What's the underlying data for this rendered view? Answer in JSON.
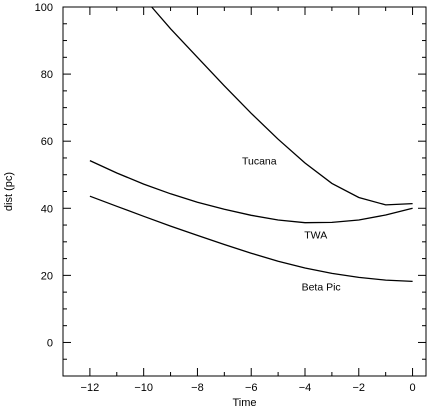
{
  "chart_data": {
    "type": "line",
    "xlabel": "Time",
    "ylabel": "dist (pc)",
    "xlim": [
      -13,
      0.5
    ],
    "ylim": [
      -10,
      100
    ],
    "xticks": [
      -12,
      -10,
      -8,
      -6,
      -4,
      -2,
      0
    ],
    "yticks": [
      0,
      20,
      40,
      60,
      80,
      100
    ],
    "xtick_labels": [
      "−12",
      "−10",
      "−8",
      "−6",
      "−4",
      "−2",
      "0"
    ],
    "ytick_labels": [
      "0",
      "20",
      "40",
      "60",
      "80",
      "100"
    ],
    "grid": false,
    "series": [
      {
        "name": "Tucana",
        "x": [
          -9.7,
          -9,
          -8,
          -7,
          -6,
          -5,
          -4,
          -3,
          -2,
          -1,
          0
        ],
        "y": [
          100,
          93.5,
          85,
          76.5,
          68.3,
          60.6,
          53.5,
          47.4,
          43.2,
          41,
          41.4
        ]
      },
      {
        "name": "TWA",
        "x": [
          -12,
          -11,
          -10,
          -9,
          -8,
          -7,
          -6,
          -5,
          -4,
          -3,
          -2,
          -1,
          0
        ],
        "y": [
          54.2,
          50.5,
          47.2,
          44.3,
          41.8,
          39.7,
          37.9,
          36.5,
          35.7,
          35.8,
          36.5,
          38,
          40
        ]
      },
      {
        "name": "Beta Pic",
        "x": [
          -12,
          -11,
          -10,
          -9,
          -8,
          -7,
          -6,
          -5,
          -4,
          -3,
          -2,
          -1,
          0
        ],
        "y": [
          43.6,
          40.6,
          37.6,
          34.7,
          31.9,
          29.2,
          26.6,
          24.2,
          22.2,
          20.6,
          19.4,
          18.6,
          18.2
        ]
      }
    ],
    "annotations": [
      {
        "text": "Tucana",
        "x": -5.7,
        "y": 53
      },
      {
        "text": "TWA",
        "x": -3.6,
        "y": 31
      },
      {
        "text": "Beta Pic",
        "x": -3.4,
        "y": 15.5
      }
    ]
  }
}
